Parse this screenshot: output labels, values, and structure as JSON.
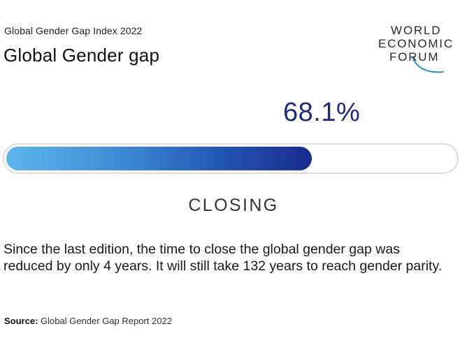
{
  "header": {
    "subtitle": "Global Gender Gap Index 2022",
    "title": "Global Gender gap"
  },
  "logo": {
    "line1": "WORLD",
    "line2": "ECONOMIC",
    "line3": "FORUM",
    "arc_color": "#2a8fd0"
  },
  "chart_data": {
    "type": "bar",
    "categories": [
      "Global Gender gap"
    ],
    "values": [
      68.1
    ],
    "value_label": "68.1%",
    "xlim": [
      0,
      100
    ],
    "title": "Global Gender gap",
    "subtitle": "Global Gender Gap Index 2022",
    "status_label": "CLOSING",
    "fill_gradient": [
      "#5cb6ea",
      "#1a2c8c"
    ]
  },
  "description": "Since the last edition, the time to close the global gender gap was reduced by only 4 years. It will still take 132 years to reach gender parity.",
  "source": {
    "label": "Source:",
    "text": "Global Gender Gap Report 2022"
  }
}
